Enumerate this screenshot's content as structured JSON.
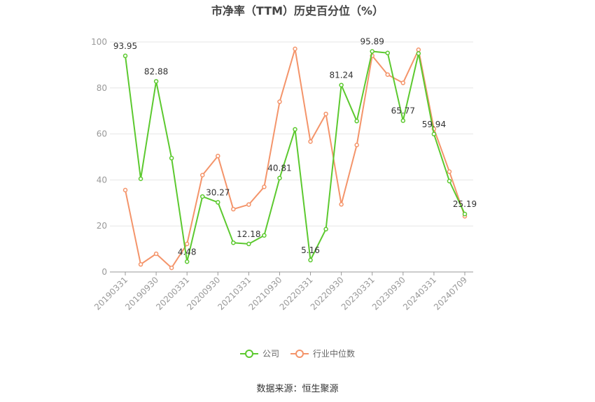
{
  "chart_data": {
    "type": "line",
    "title": "市净率（TTM）历史百分位（%）",
    "x": [
      "20190331",
      "20190630",
      "20190930",
      "20191231",
      "20200331",
      "20200630",
      "20200930",
      "20201231",
      "20210331",
      "20210630",
      "20210930",
      "20211231",
      "20220331",
      "20220630",
      "20220930",
      "20221231",
      "20230331",
      "20230630",
      "20230930",
      "20231231",
      "20240331",
      "20240630",
      "20240709"
    ],
    "tick_labels": [
      "20190331",
      "20190930",
      "20200331",
      "20200930",
      "20210331",
      "20210930",
      "20220331",
      "20220930",
      "20230331",
      "20230930",
      "20240331",
      "20240709"
    ],
    "tick_indices": [
      0,
      2,
      4,
      6,
      8,
      10,
      12,
      14,
      16,
      18,
      20,
      22
    ],
    "yticks": [
      0,
      20,
      40,
      60,
      80,
      100
    ],
    "ylim": [
      0,
      100
    ],
    "grid": true,
    "legend_position": "bottom",
    "series": [
      {
        "name": "公司",
        "color": "#5cc92f",
        "values": [
          93.95,
          40.5,
          82.88,
          49.5,
          4.48,
          32.8,
          30.27,
          12.7,
          12.18,
          15.9,
          40.81,
          62.0,
          5.16,
          18.6,
          81.24,
          65.6,
          95.89,
          95.2,
          65.77,
          95.0,
          59.94,
          39.5,
          25.19
        ],
        "data_labels": {
          "0": "93.95",
          "2": "82.88",
          "4": "4.48",
          "6": "30.27",
          "8": "12.18",
          "10": "40.81",
          "12": "5.16",
          "14": "81.24",
          "16": "95.89",
          "18": "65.77",
          "20": "59.94",
          "22": "25.19"
        }
      },
      {
        "name": "行业中位数",
        "color": "#f4946a",
        "values": [
          35.6,
          3.3,
          7.9,
          1.8,
          12.2,
          42.1,
          50.4,
          27.3,
          29.3,
          37.0,
          74.0,
          97.0,
          56.7,
          68.7,
          29.4,
          55.2,
          94.0,
          85.8,
          82.2,
          96.6,
          62.2,
          43.6,
          24.2
        ]
      }
    ]
  },
  "source": "数据来源：恒生聚源"
}
